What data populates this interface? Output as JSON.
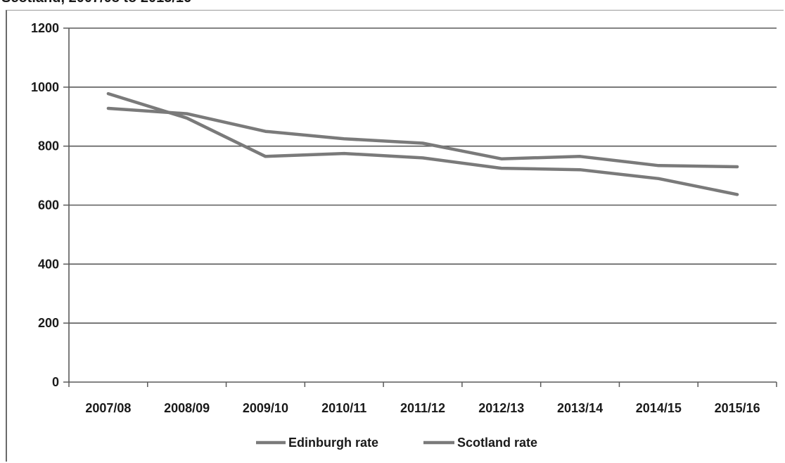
{
  "header": {
    "partial_title": "Scotland, 2007/08 to 2015/16"
  },
  "chart_data": {
    "type": "line",
    "categories": [
      "2007/08",
      "2008/09",
      "2009/10",
      "2010/11",
      "2011/12",
      "2012/13",
      "2013/14",
      "2014/15",
      "2015/16"
    ],
    "yticks": [
      0,
      200,
      400,
      600,
      800,
      1000,
      1200
    ],
    "ylim": [
      0,
      1200
    ],
    "grid": true,
    "legend_position": "bottom",
    "series": [
      {
        "name": "Edinburgh rate",
        "color": "#7a7a7a",
        "values": [
          978,
          895,
          765,
          775,
          760,
          725,
          720,
          690,
          636
        ]
      },
      {
        "name": "Scotland rate",
        "color": "#7a7a7a",
        "values": [
          928,
          910,
          850,
          825,
          810,
          757,
          765,
          734,
          730
        ]
      }
    ]
  }
}
